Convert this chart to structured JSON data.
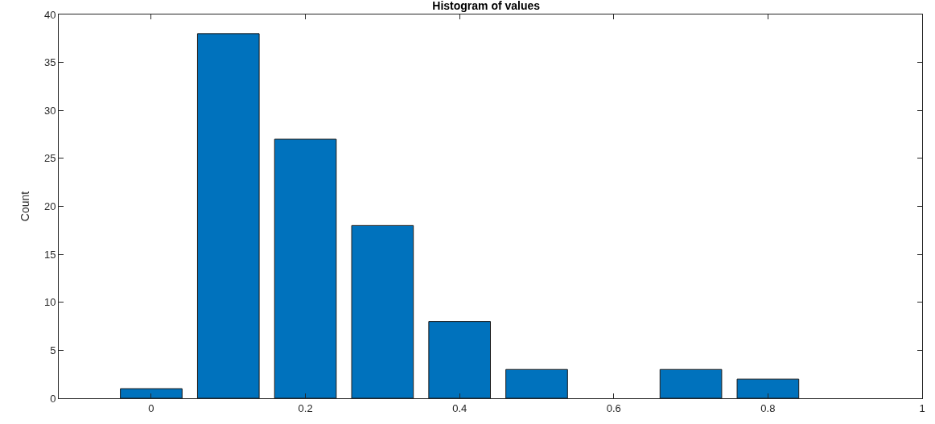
{
  "chart_data": {
    "type": "bar",
    "title": "Histogram of values",
    "ylabel": "Count",
    "x": [
      0,
      0.1,
      0.2,
      0.3,
      0.4,
      0.5,
      0.6,
      0.7,
      0.8
    ],
    "values": [
      1,
      38,
      27,
      18,
      8,
      3,
      0,
      3,
      2
    ],
    "color": "#0072bd",
    "xlim": [
      -0.12,
      1
    ],
    "xticks": [
      0,
      0.2,
      0.4,
      0.6,
      0.8,
      1
    ],
    "ylim": [
      0,
      40
    ],
    "yticks": [
      0,
      5,
      10,
      15,
      20,
      25,
      30,
      35,
      40
    ]
  }
}
